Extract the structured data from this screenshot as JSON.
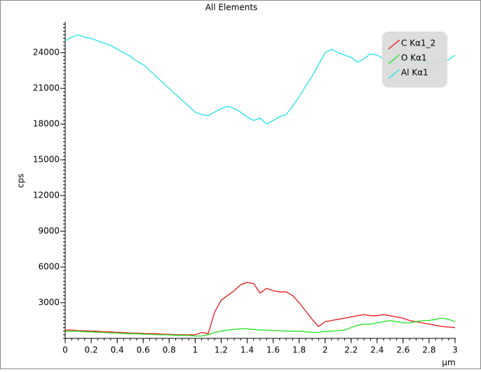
{
  "chart_data": {
    "type": "line",
    "title": "All Elements",
    "xlabel": "µm",
    "ylabel": "cps",
    "x": [
      0,
      0.05,
      0.1,
      0.15,
      0.2,
      0.25,
      0.3,
      0.35,
      0.4,
      0.45,
      0.5,
      0.55,
      0.6,
      0.65,
      0.7,
      0.75,
      0.8,
      0.85,
      0.9,
      0.95,
      1,
      1.05,
      1.1,
      1.15,
      1.2,
      1.25,
      1.3,
      1.35,
      1.4,
      1.45,
      1.5,
      1.55,
      1.6,
      1.65,
      1.7,
      1.75,
      1.8,
      1.85,
      1.9,
      1.95,
      2,
      2.05,
      2.1,
      2.15,
      2.2,
      2.25,
      2.3,
      2.35,
      2.4,
      2.45,
      2.5,
      2.55,
      2.6,
      2.65,
      2.7,
      2.75,
      2.8,
      2.85,
      2.9,
      2.95,
      3
    ],
    "series": [
      {
        "name": "C Kα1_2",
        "color": "#e8181b",
        "values": [
          700,
          700,
          650,
          650,
          600,
          600,
          550,
          550,
          500,
          500,
          450,
          450,
          400,
          400,
          400,
          350,
          350,
          300,
          300,
          300,
          300,
          500,
          400,
          2200,
          3200,
          3600,
          4000,
          4500,
          4700,
          4600,
          3800,
          4200,
          4000,
          3900,
          3900,
          3600,
          3000,
          2300,
          1600,
          1000,
          1400,
          1500,
          1600,
          1700,
          1800,
          1900,
          2000,
          1900,
          1900,
          2000,
          1900,
          1800,
          1700,
          1500,
          1400,
          1300,
          1200,
          1100,
          1000,
          950,
          900
        ]
      },
      {
        "name": "O Kα1",
        "color": "#22e01e",
        "values": [
          600,
          600,
          600,
          550,
          550,
          500,
          500,
          450,
          450,
          400,
          400,
          400,
          350,
          350,
          300,
          300,
          300,
          250,
          250,
          250,
          200,
          200,
          300,
          500,
          600,
          700,
          750,
          800,
          800,
          750,
          700,
          700,
          650,
          650,
          600,
          600,
          600,
          550,
          500,
          500,
          600,
          600,
          650,
          700,
          900,
          1100,
          1200,
          1200,
          1300,
          1400,
          1500,
          1400,
          1300,
          1300,
          1400,
          1500,
          1500,
          1600,
          1700,
          1600,
          1400
        ]
      },
      {
        "name": "Al Kα1",
        "color": "#1fe3e8",
        "values": [
          25000,
          25300,
          25500,
          25300,
          25200,
          25000,
          24800,
          24600,
          24300,
          24000,
          23700,
          23300,
          23000,
          22500,
          22000,
          21500,
          21000,
          20500,
          20000,
          19500,
          19000,
          18800,
          18700,
          19000,
          19300,
          19500,
          19300,
          19000,
          18600,
          18300,
          18500,
          18000,
          18300,
          18600,
          18800,
          19500,
          20300,
          21200,
          22000,
          23000,
          24000,
          24300,
          24000,
          23800,
          23600,
          23200,
          23500,
          23900,
          23800,
          23500,
          23200,
          23000,
          23600,
          23300,
          23000,
          23200,
          23100,
          23000,
          23300,
          23400,
          23800
        ]
      }
    ],
    "xlim": [
      0,
      3
    ],
    "xticks": [
      0,
      0.2,
      0.4,
      0.6,
      0.8,
      1,
      1.2,
      1.4,
      1.6,
      1.8,
      2,
      2.2,
      2.4,
      2.6,
      2.8,
      3
    ],
    "ylim": [
      0,
      26600
    ],
    "yticks": [
      3000,
      6000,
      9000,
      12000,
      15000,
      18000,
      21000,
      24000
    ],
    "legend": "top-right",
    "grid": false
  }
}
